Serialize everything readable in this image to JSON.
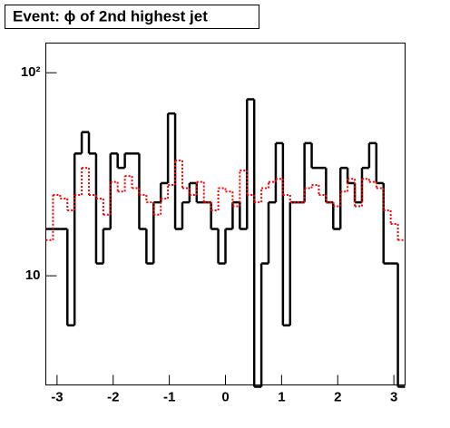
{
  "chart_data": {
    "type": "histogram",
    "title": "Event: ϕ of 2nd highest jet",
    "bins": [
      -3.2,
      -3.072,
      -2.944,
      -2.816,
      -2.688,
      -2.56,
      -2.432,
      -2.304,
      -2.176,
      -2.048,
      -1.92,
      -1.792,
      -1.664,
      -1.536,
      -1.408,
      -1.28,
      -1.152,
      -1.024,
      -0.896,
      -0.768,
      -0.64,
      -0.512,
      -0.384,
      -0.256,
      -0.128,
      0,
      0.128,
      0.256,
      0.384,
      0.512,
      0.64,
      0.768,
      0.896,
      1.024,
      1.152,
      1.28,
      1.408,
      1.536,
      1.664,
      1.792,
      1.92,
      2.048,
      2.176,
      2.304,
      2.432,
      2.56,
      2.688,
      2.816,
      2.944,
      3.072,
      3.2
    ],
    "series": [
      {
        "color": "#000000",
        "style": "solid",
        "values": [
          17,
          17,
          17,
          5.7,
          40,
          51,
          40,
          11.5,
          17,
          40,
          34,
          40,
          40,
          17,
          11.5,
          23,
          28.6,
          63,
          17,
          23,
          28.6,
          23,
          23,
          17,
          11.5,
          17,
          23,
          17,
          74,
          0,
          11.5,
          23,
          45,
          5.7,
          23,
          23,
          45,
          34,
          34,
          23,
          17,
          34,
          28.6,
          23,
          34,
          45,
          28.6,
          11.5,
          11.5,
          0
        ]
      },
      {
        "color": "#ff0000",
        "style": "dotted",
        "values": [
          15,
          25,
          24,
          21,
          25,
          34,
          25,
          24,
          20,
          29,
          26,
          31,
          27,
          25,
          23,
          20,
          24,
          28,
          37,
          27,
          25,
          29,
          23,
          21,
          27,
          26,
          22,
          33,
          25,
          23,
          27,
          29,
          30,
          25,
          23,
          23,
          27,
          28,
          25,
          23,
          22,
          26,
          30,
          22,
          30,
          29,
          27,
          21,
          18,
          15
        ]
      }
    ],
    "xlim": [
      -3.2,
      3.2
    ],
    "xticks": [
      -3,
      -2,
      -1,
      0,
      1,
      2,
      3
    ],
    "ylim": [
      2.9,
      140
    ],
    "ylog": true,
    "yticks": [
      10,
      {
        "value": 100,
        "label": "10²"
      }
    ]
  }
}
